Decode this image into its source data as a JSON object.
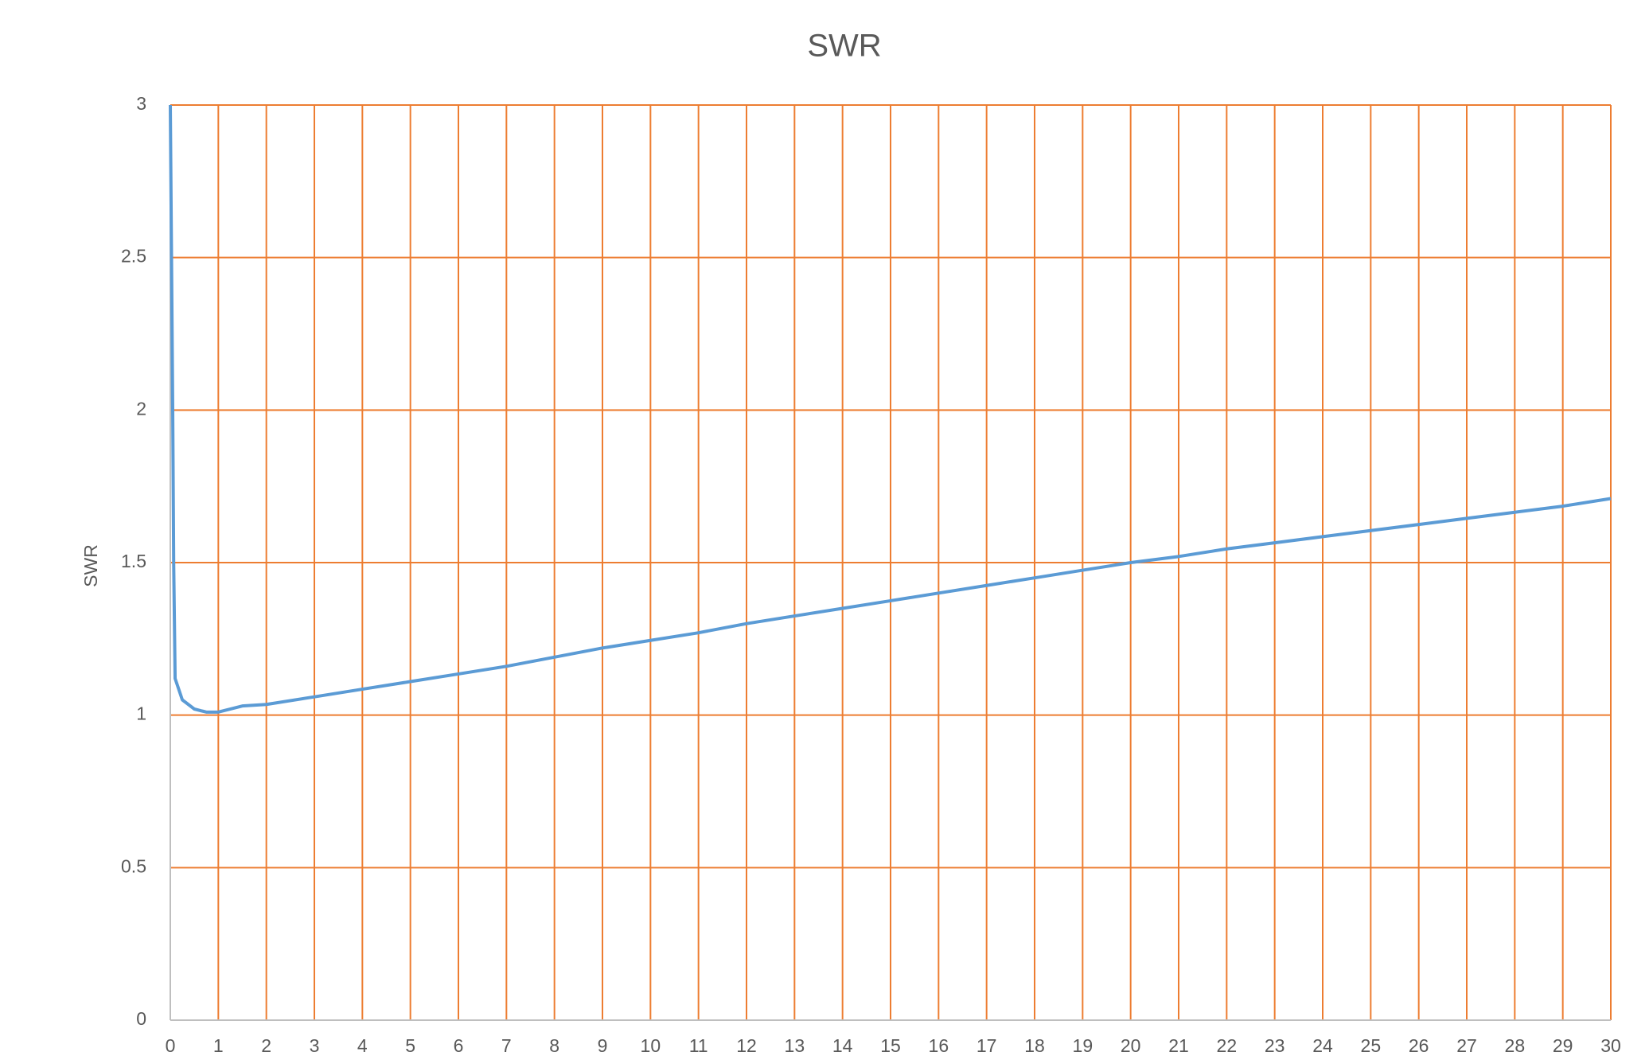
{
  "chart_data": {
    "type": "line",
    "title": "SWR",
    "y_label": "SWR",
    "x": [
      0,
      0.05,
      0.07,
      0.1,
      0.25,
      0.5,
      0.75,
      1,
      1.5,
      2,
      3,
      4,
      5,
      6,
      7,
      8,
      9,
      10,
      11,
      12,
      13,
      14,
      15,
      16,
      17,
      18,
      19,
      20,
      21,
      22,
      23,
      24,
      25,
      26,
      27,
      28,
      29,
      30
    ],
    "series": [
      {
        "name": "SWR",
        "color": "#5b9bd5",
        "values": [
          3.0,
          2.0,
          1.5,
          1.12,
          1.05,
          1.02,
          1.01,
          1.01,
          1.03,
          1.035,
          1.06,
          1.085,
          1.11,
          1.135,
          1.16,
          1.19,
          1.22,
          1.245,
          1.27,
          1.3,
          1.325,
          1.35,
          1.375,
          1.4,
          1.425,
          1.45,
          1.475,
          1.5,
          1.52,
          1.545,
          1.565,
          1.585,
          1.605,
          1.625,
          1.645,
          1.665,
          1.685,
          1.71
        ]
      }
    ],
    "xlim": [
      0,
      30
    ],
    "xticks": [
      0,
      1,
      2,
      3,
      4,
      5,
      6,
      7,
      8,
      9,
      10,
      11,
      12,
      13,
      14,
      15,
      16,
      17,
      18,
      19,
      20,
      21,
      22,
      23,
      24,
      25,
      26,
      27,
      28,
      29,
      30
    ],
    "ylim": [
      0,
      3
    ],
    "yticks": [
      0,
      0.5,
      1,
      1.5,
      2,
      2.5,
      3
    ],
    "grid": true,
    "grid_color": "#ed7d31"
  }
}
